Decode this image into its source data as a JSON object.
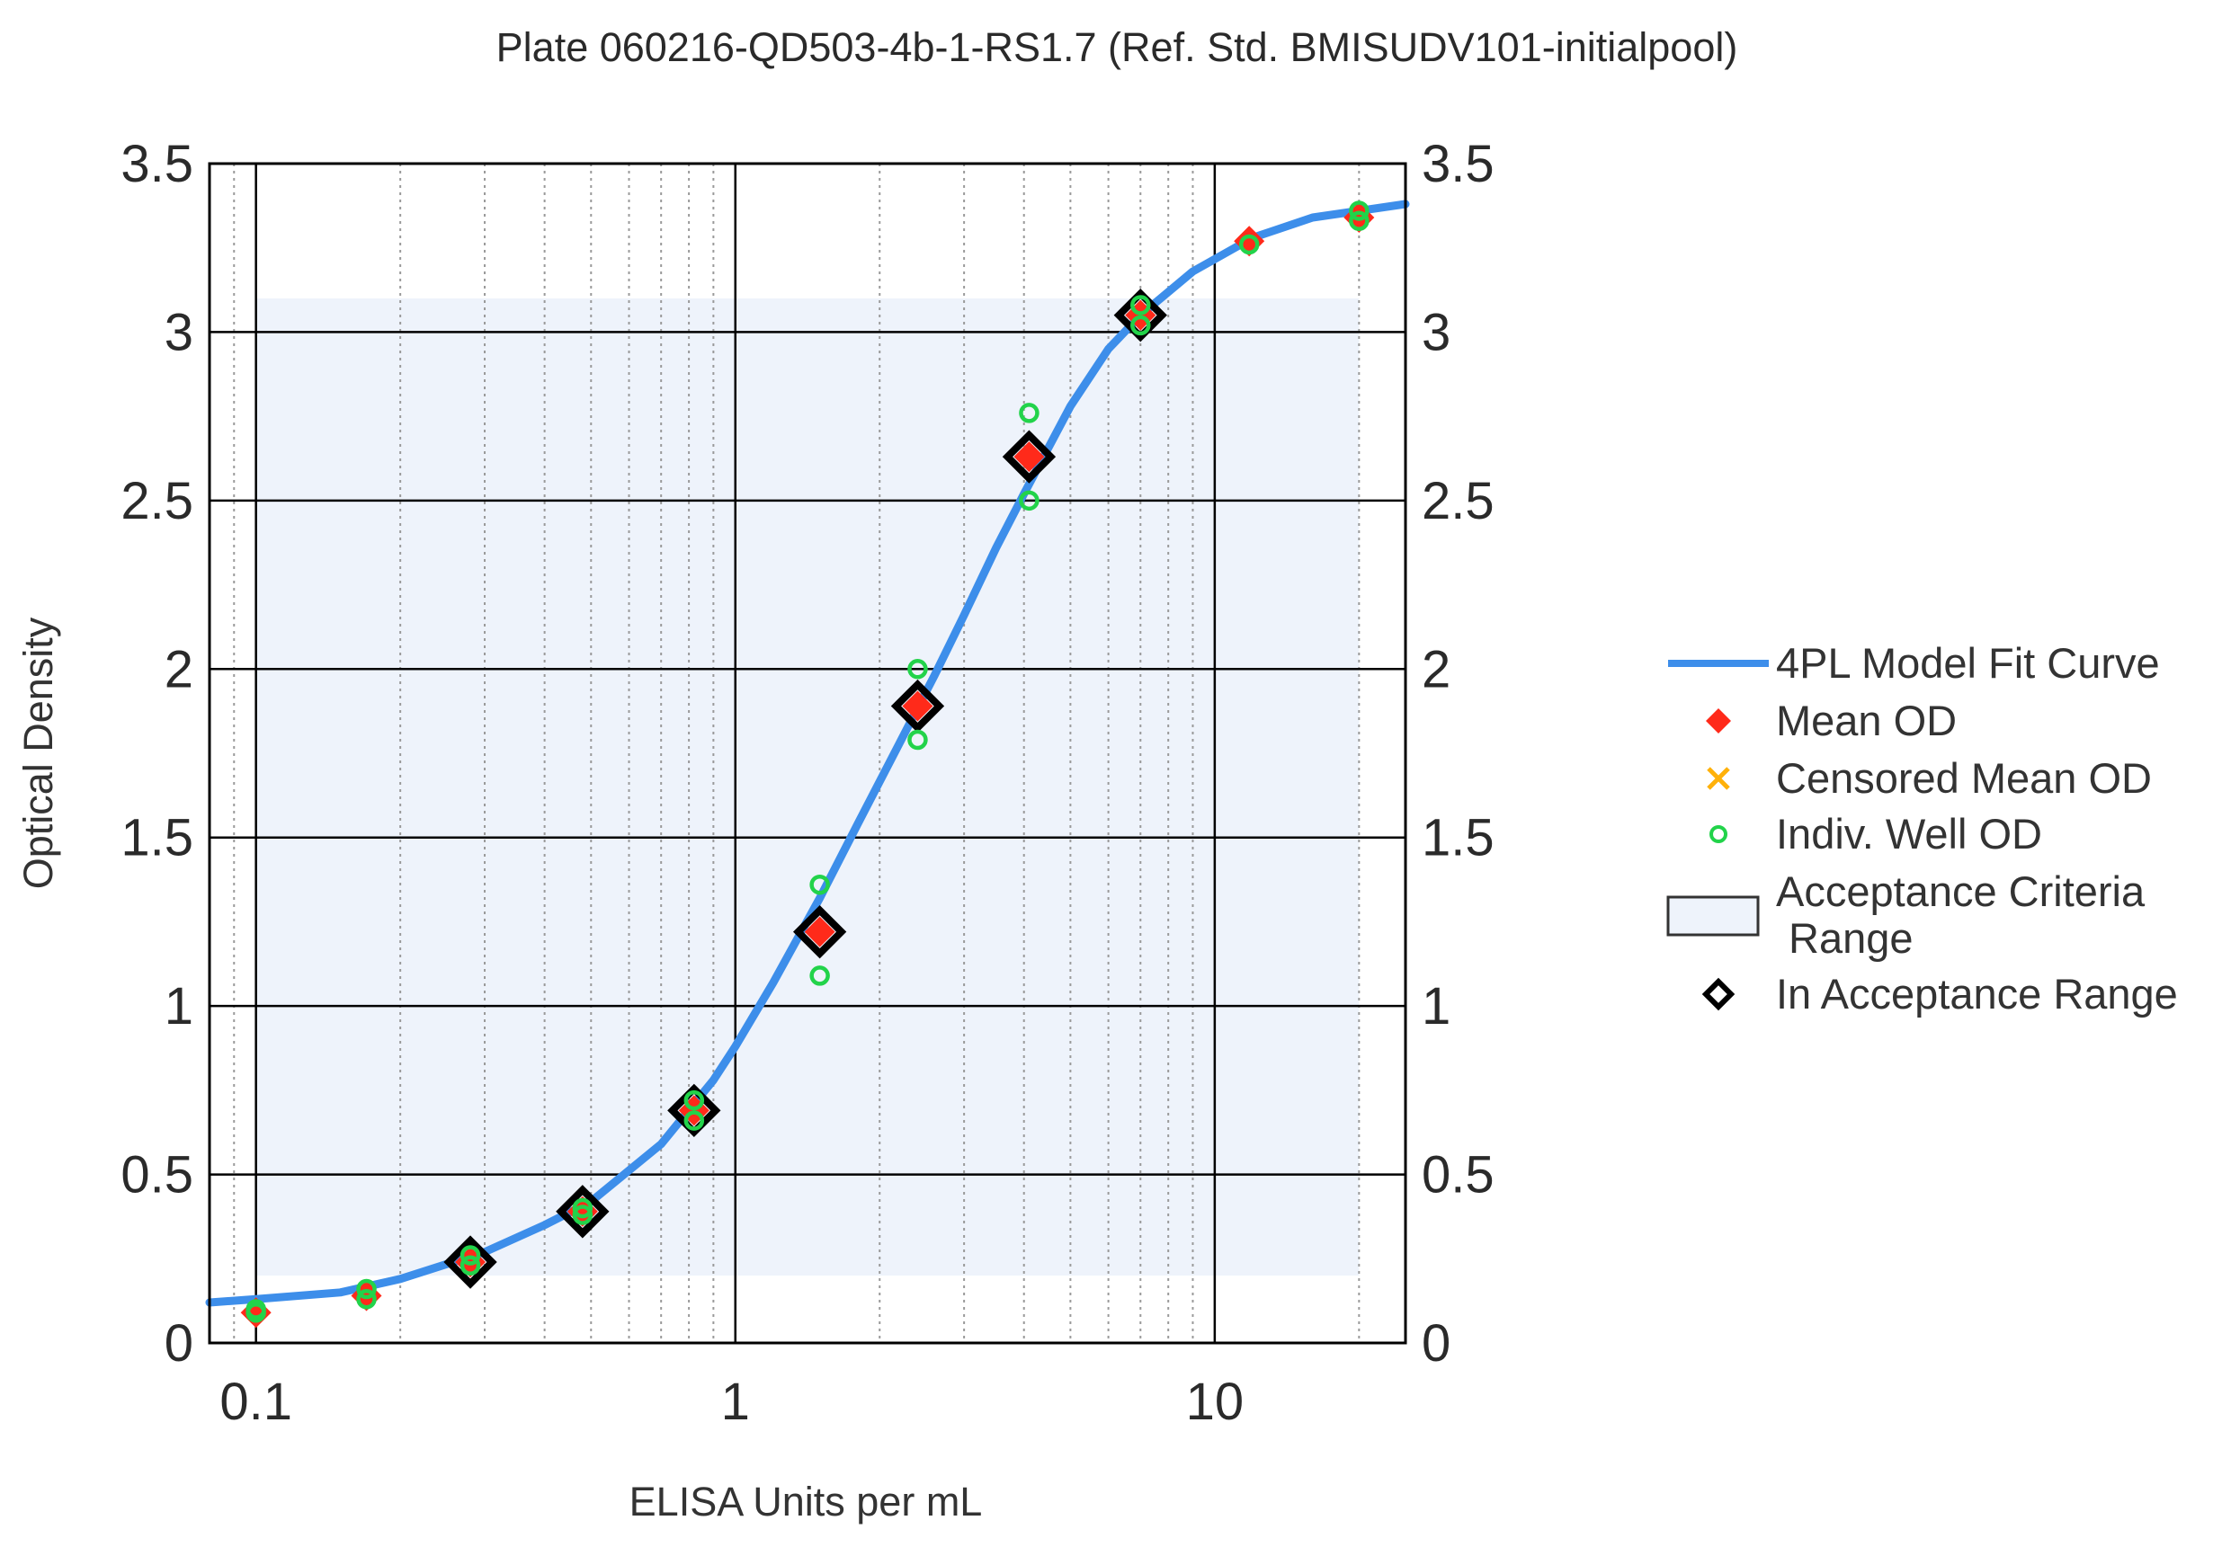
{
  "chart_data": {
    "type": "scatter",
    "title": "Plate 060216-QD503-4b-1-RS1.7 (Ref. Std. BMISUDV101-initialpool)",
    "xlabel": "ELISA Units per mL",
    "ylabel": "Optical Density",
    "x_scale": "log",
    "xlim": [
      0.08,
      25
    ],
    "ylim": [
      0,
      3.5
    ],
    "x_ticks": [
      {
        "value": 0.1,
        "label": "0.1"
      },
      {
        "value": 1,
        "label": "1"
      },
      {
        "value": 10,
        "label": "10"
      }
    ],
    "y_ticks": [
      {
        "value": 0,
        "label": "0"
      },
      {
        "value": 0.5,
        "label": "0.5"
      },
      {
        "value": 1,
        "label": "1"
      },
      {
        "value": 1.5,
        "label": "1.5"
      },
      {
        "value": 2,
        "label": "2"
      },
      {
        "value": 2.5,
        "label": "2.5"
      },
      {
        "value": 3,
        "label": "3"
      },
      {
        "value": 3.5,
        "label": "3.5"
      }
    ],
    "grid": true,
    "legend_position": "right",
    "acceptance_range": {
      "x": [
        0.1,
        20
      ],
      "y": [
        0.2,
        3.1
      ]
    },
    "series": [
      {
        "name": "4PL Model Fit Curve",
        "kind": "curve",
        "x": [
          0.08,
          0.1,
          0.15,
          0.2,
          0.3,
          0.4,
          0.5,
          0.7,
          0.9,
          1.0,
          1.2,
          1.5,
          1.8,
          2.2,
          2.6,
          3.0,
          3.5,
          4.0,
          5.0,
          6.0,
          7.0,
          9.0,
          12.0,
          16.0,
          20.0,
          25.0
        ],
        "y": [
          0.12,
          0.13,
          0.15,
          0.19,
          0.27,
          0.35,
          0.42,
          0.59,
          0.78,
          0.88,
          1.07,
          1.32,
          1.54,
          1.78,
          1.98,
          2.16,
          2.36,
          2.52,
          2.78,
          2.95,
          3.05,
          3.18,
          3.28,
          3.34,
          3.36,
          3.38
        ]
      },
      {
        "name": "Mean OD",
        "kind": "marker",
        "x": [
          0.1,
          0.17,
          0.28,
          0.48,
          0.82,
          1.5,
          2.4,
          4.1,
          7.0,
          11.8,
          20.0
        ],
        "y": [
          0.09,
          0.14,
          0.24,
          0.39,
          0.69,
          1.22,
          1.89,
          2.63,
          3.05,
          3.27,
          3.34
        ]
      },
      {
        "name": "Censored Mean OD",
        "kind": "marker",
        "x": [],
        "y": []
      },
      {
        "name": "Indiv. Well OD",
        "kind": "marker",
        "x": [
          0.1,
          0.1,
          0.17,
          0.17,
          0.28,
          0.28,
          0.48,
          0.48,
          0.82,
          0.82,
          1.5,
          1.5,
          2.4,
          2.4,
          4.1,
          4.1,
          7.0,
          7.0,
          11.8,
          20.0,
          20.0
        ],
        "y": [
          0.09,
          0.1,
          0.13,
          0.16,
          0.23,
          0.26,
          0.38,
          0.4,
          0.66,
          0.72,
          1.09,
          1.36,
          1.79,
          2.0,
          2.5,
          2.76,
          3.02,
          3.08,
          3.26,
          3.33,
          3.36
        ]
      },
      {
        "name": "In Acceptance Range",
        "kind": "marker",
        "x": [
          0.28,
          0.48,
          0.82,
          1.5,
          2.4,
          4.1,
          7.0
        ],
        "y": [
          0.24,
          0.39,
          0.69,
          1.22,
          1.89,
          2.63,
          3.05
        ]
      }
    ],
    "legend": [
      {
        "label": "4PL Model Fit Curve",
        "symbol": "line",
        "color": "#3d8eea"
      },
      {
        "label": "Mean OD",
        "symbol": "diamond-filled",
        "color": "#ff2a1a"
      },
      {
        "label": "Censored Mean OD",
        "symbol": "x",
        "color": "#ffb10a"
      },
      {
        "label": "Indiv. Well OD",
        "symbol": "circle-open",
        "color": "#22d34a"
      },
      {
        "label": "Acceptance Criteria",
        "label2": "Range",
        "symbol": "rect",
        "color": "#eef3fb"
      },
      {
        "label": "In Acceptance Range",
        "symbol": "diamond-open",
        "color": "#000000"
      }
    ],
    "colors": {
      "curve": "#3d8eea",
      "mean": "#ff2a1a",
      "censored": "#ffb10a",
      "well": "#22d34a",
      "acceptance_fill": "#eef3fb",
      "in_range": "#000000",
      "grid_major": "#000000",
      "grid_minor": "#9a9a9a"
    }
  }
}
